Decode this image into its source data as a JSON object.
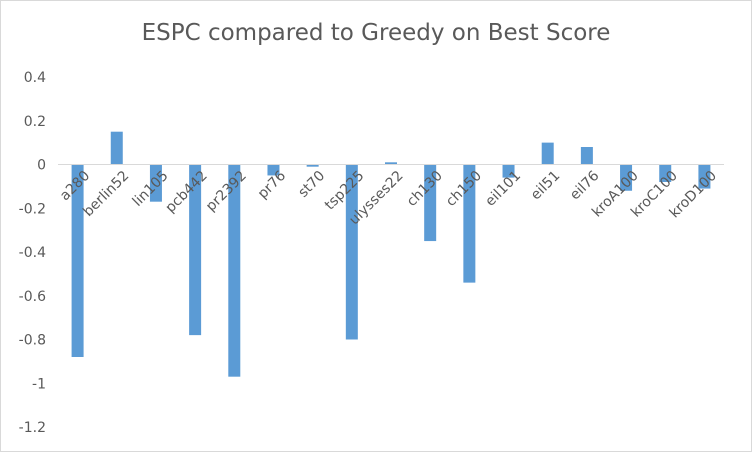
{
  "chart_data": {
    "type": "bar",
    "title": "ESPC compared to Greedy on Best Score",
    "xlabel": "",
    "ylabel": "",
    "categories": [
      "a280",
      "berlin52",
      "lin105",
      "pcb442",
      "pr2392",
      "pr76",
      "st70",
      "tsp225",
      "ulysses22",
      "ch130",
      "ch150",
      "eil101",
      "eil51",
      "eil76",
      "kroA100",
      "kroC100",
      "kroD100"
    ],
    "values": [
      -0.88,
      0.15,
      -0.17,
      -0.78,
      -0.97,
      -0.05,
      -0.01,
      -0.8,
      0.01,
      -0.35,
      -0.54,
      -0.06,
      0.1,
      0.08,
      -0.12,
      -0.08,
      -0.11
    ],
    "ylim": [
      -1.2,
      0.4
    ],
    "yticks": [
      0.4,
      0.2,
      0,
      -0.2,
      -0.4,
      -0.6,
      -0.8,
      -1,
      -1.2
    ],
    "grid": false,
    "legend": "none",
    "bar_color": "#5b9bd5",
    "axis_color": "#d9d9d9",
    "text_color": "#595959"
  }
}
